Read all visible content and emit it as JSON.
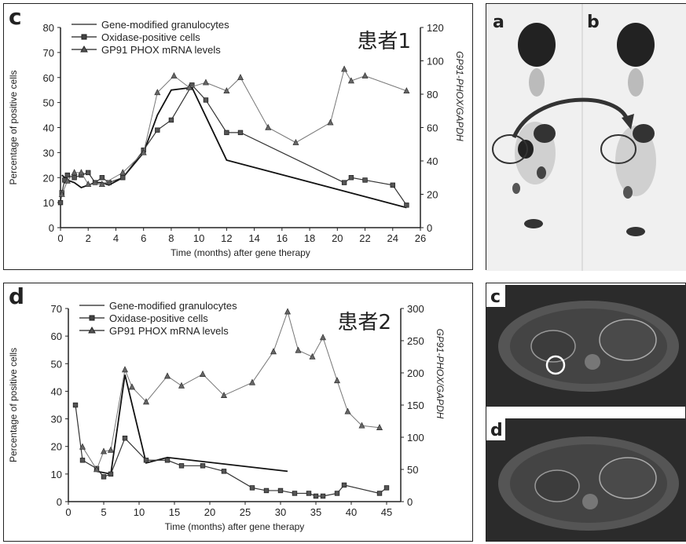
{
  "chart_data": [
    {
      "type": "line",
      "panel_label": "c",
      "patient_label": "患者1",
      "xlabel": "Time (months) after gene therapy",
      "ylabel": "Percentage of positive cells",
      "ylabel_right": "GP91-PHOX/GAPDH",
      "xlim": [
        0,
        26
      ],
      "ylim": [
        0,
        80
      ],
      "ylim_right": [
        0,
        120
      ],
      "x_ticks": [
        "0",
        "2",
        "4",
        "6",
        "8",
        "10",
        "12",
        "14",
        "16",
        "18",
        "20",
        "22",
        "24",
        "26"
      ],
      "y_ticks": [
        "0",
        "10",
        "20",
        "30",
        "40",
        "50",
        "60",
        "70",
        "80"
      ],
      "y_ticks_right": [
        "0",
        "20",
        "40",
        "60",
        "80",
        "100",
        "120"
      ],
      "legend": [
        "Gene-modified granulocytes",
        "Oxidase-positive cells",
        "GP91 PHOX mRNA levels"
      ],
      "series": [
        {
          "name": "Gene-modified granulocytes",
          "marker": "none",
          "axis": "left",
          "x": [
            0.1,
            0.5,
            1.0,
            1.5,
            2.0,
            2.5,
            3.0,
            3.5,
            4.5,
            6.0,
            7.0,
            8.0,
            9.5,
            12.0,
            25.0
          ],
          "y": [
            21,
            19,
            18,
            16,
            17,
            18,
            18,
            17,
            20,
            30,
            45,
            55,
            56,
            27,
            8
          ]
        },
        {
          "name": "Oxidase-positive cells",
          "marker": "square",
          "axis": "left",
          "x": [
            0.0,
            0.1,
            0.3,
            0.5,
            1.0,
            1.5,
            2.0,
            2.5,
            3.0,
            3.5,
            4.5,
            6.0,
            7.0,
            8.0,
            9.5,
            10.5,
            12.0,
            13.0,
            20.5,
            21.0,
            22.0,
            24.0,
            25.0
          ],
          "y": [
            10,
            14,
            19,
            21,
            20,
            21,
            22,
            18,
            20,
            18,
            20,
            31,
            39,
            43,
            57,
            51,
            38,
            38,
            18,
            20,
            19,
            17,
            9
          ]
        },
        {
          "name": "GP91 PHOX mRNA levels",
          "marker": "triangle",
          "axis": "right",
          "x": [
            0.1,
            0.5,
            1.0,
            1.5,
            2.0,
            3.0,
            4.5,
            6.0,
            7.0,
            8.2,
            9.3,
            10.5,
            12.0,
            13.0,
            15.0,
            17.0,
            19.5,
            20.5,
            21.0,
            22.0,
            25.0
          ],
          "y": [
            20,
            28,
            33,
            33,
            26,
            26,
            33,
            45,
            81,
            91,
            84,
            87,
            82,
            90,
            60,
            51,
            63,
            95,
            88,
            91,
            82
          ]
        }
      ]
    },
    {
      "type": "line",
      "panel_label": "d",
      "patient_label": "患者2",
      "xlabel": "Time (months) after gene therapy",
      "ylabel": "Percentage of positive cells",
      "ylabel_right": "GP91-PHOX/GAPDH",
      "xlim": [
        0,
        47
      ],
      "ylim": [
        0,
        70
      ],
      "ylim_right": [
        0,
        300
      ],
      "x_ticks": [
        "0",
        "5",
        "10",
        "15",
        "20",
        "25",
        "30",
        "35",
        "40",
        "45"
      ],
      "y_ticks": [
        "0",
        "10",
        "20",
        "30",
        "40",
        "50",
        "60",
        "70"
      ],
      "y_ticks_right": [
        "0",
        "50",
        "100",
        "150",
        "200",
        "250",
        "300"
      ],
      "legend": [
        "Gene-modified granulocytes",
        "Oxidase-positive cells",
        "GP91 PHOX mRNA levels"
      ],
      "series": [
        {
          "name": "Gene-modified granulocytes",
          "marker": "none",
          "axis": "left",
          "x": [
            4,
            6,
            8,
            11,
            14,
            31
          ],
          "y": [
            11,
            10,
            46,
            14,
            16,
            11
          ]
        },
        {
          "name": "Oxidase-positive cells",
          "marker": "square",
          "axis": "left",
          "x": [
            1,
            2,
            4,
            5,
            6,
            8,
            11,
            14,
            16,
            19,
            22,
            26,
            28,
            30,
            32,
            34,
            35,
            36,
            38,
            39,
            44,
            45
          ],
          "y": [
            35,
            15,
            12,
            9,
            10,
            23,
            15,
            15,
            13,
            13,
            11,
            5,
            4,
            4,
            3,
            3,
            2,
            2,
            3,
            6,
            3,
            5
          ]
        },
        {
          "name": "GP91 PHOX mRNA levels",
          "marker": "triangle",
          "axis": "right",
          "x": [
            2,
            4,
            5,
            6,
            8,
            9,
            11,
            14,
            16,
            19,
            22,
            26,
            29,
            31,
            32.5,
            34.5,
            36,
            38,
            39.5,
            41.5,
            44
          ],
          "y": [
            85,
            50,
            78,
            80,
            205,
            178,
            155,
            195,
            180,
            198,
            165,
            185,
            233,
            295,
            235,
            225,
            255,
            188,
            140,
            118,
            115
          ]
        }
      ]
    }
  ],
  "images": {
    "top": {
      "labels": [
        "a",
        "b"
      ]
    },
    "bottom": {
      "labels": [
        "c",
        "d"
      ]
    }
  }
}
